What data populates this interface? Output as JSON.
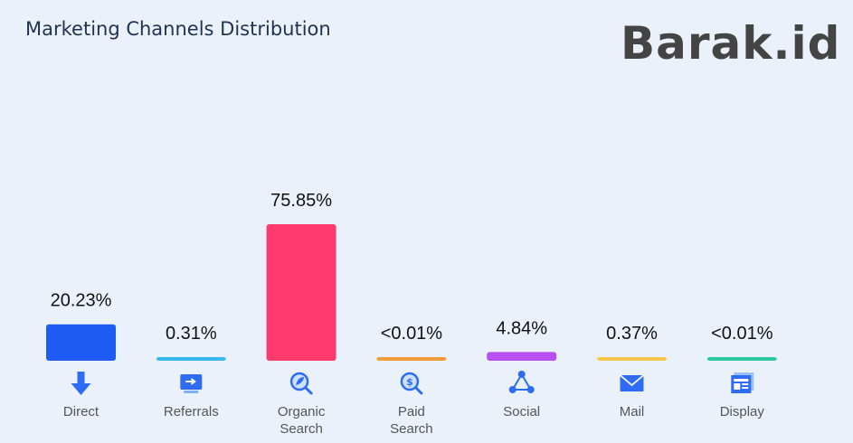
{
  "header": {
    "title": "Marketing Channels Distribution",
    "logo_text": "Barak.id"
  },
  "chart_data": {
    "type": "bar",
    "title": "Marketing Channels Distribution",
    "categories": [
      "Direct",
      "Referrals",
      "Organic Search",
      "Paid Search",
      "Social",
      "Mail",
      "Display"
    ],
    "category_lines": [
      [
        "Direct"
      ],
      [
        "Referrals"
      ],
      [
        "Organic",
        "Search"
      ],
      [
        "Paid",
        "Search"
      ],
      [
        "Social"
      ],
      [
        "Mail"
      ],
      [
        "Display"
      ]
    ],
    "values": [
      20.23,
      0.31,
      75.85,
      0.01,
      4.84,
      0.37,
      0.01
    ],
    "data_labels": [
      "20.23%",
      "0.31%",
      "75.85%",
      "<0.01%",
      "4.84%",
      "0.37%",
      "<0.01%"
    ],
    "colors": [
      "#1e5bf5",
      "#36b8ef",
      "#ff3a6e",
      "#f39a3a",
      "#b84ff0",
      "#f9c64a",
      "#2ec9a0"
    ],
    "icons": [
      "download-arrow-icon",
      "referral-screen-icon",
      "organic-search-icon",
      "paid-search-icon",
      "social-share-icon",
      "mail-icon",
      "display-icon"
    ],
    "ylim": [
      0,
      80
    ],
    "grid": false,
    "legend": "none"
  }
}
